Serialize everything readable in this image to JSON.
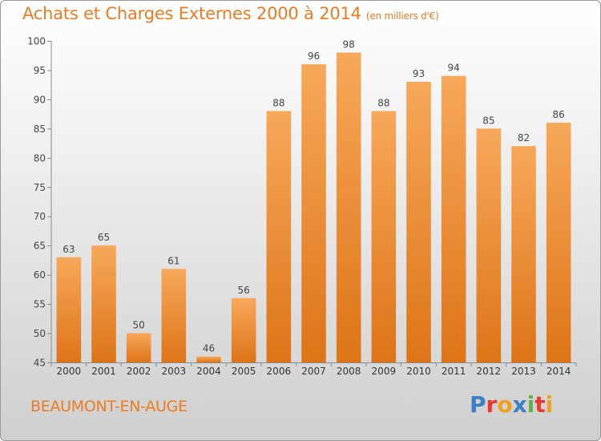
{
  "title": "Achats et Charges Externes 2000 à 2014",
  "subtitle": "(en milliers d'€)",
  "commune": "BEAUMONT-EN-AUGE",
  "logo": {
    "text": "Proxiti",
    "letters": [
      {
        "ch": "P",
        "color": "#3b7fc4"
      },
      {
        "ch": "r",
        "color": "#e8392f"
      },
      {
        "ch": "o",
        "color": "#f0a020"
      },
      {
        "ch": "x",
        "color": "#3b7fc4"
      },
      {
        "ch": "i",
        "color": "#5fb04a"
      },
      {
        "ch": "t",
        "color": "#e8392f"
      },
      {
        "ch": "i",
        "color": "#f0a020"
      }
    ]
  },
  "colors": {
    "accent": "#ee7a22",
    "bar_top": "#f7a85a",
    "bar_bottom": "#dd7418"
  },
  "chart_data": {
    "type": "bar",
    "categories": [
      "2000",
      "2001",
      "2002",
      "2003",
      "2004",
      "2005",
      "2006",
      "2007",
      "2008",
      "2009",
      "2010",
      "2011",
      "2012",
      "2013",
      "2014"
    ],
    "values": [
      63,
      65,
      50,
      61,
      46,
      56,
      88,
      96,
      98,
      88,
      93,
      94,
      85,
      82,
      86
    ],
    "ylim": [
      45,
      100
    ],
    "yticks": [
      45,
      50,
      55,
      60,
      65,
      70,
      75,
      80,
      85,
      90,
      95,
      100
    ],
    "grid": false,
    "data_labels": true
  }
}
